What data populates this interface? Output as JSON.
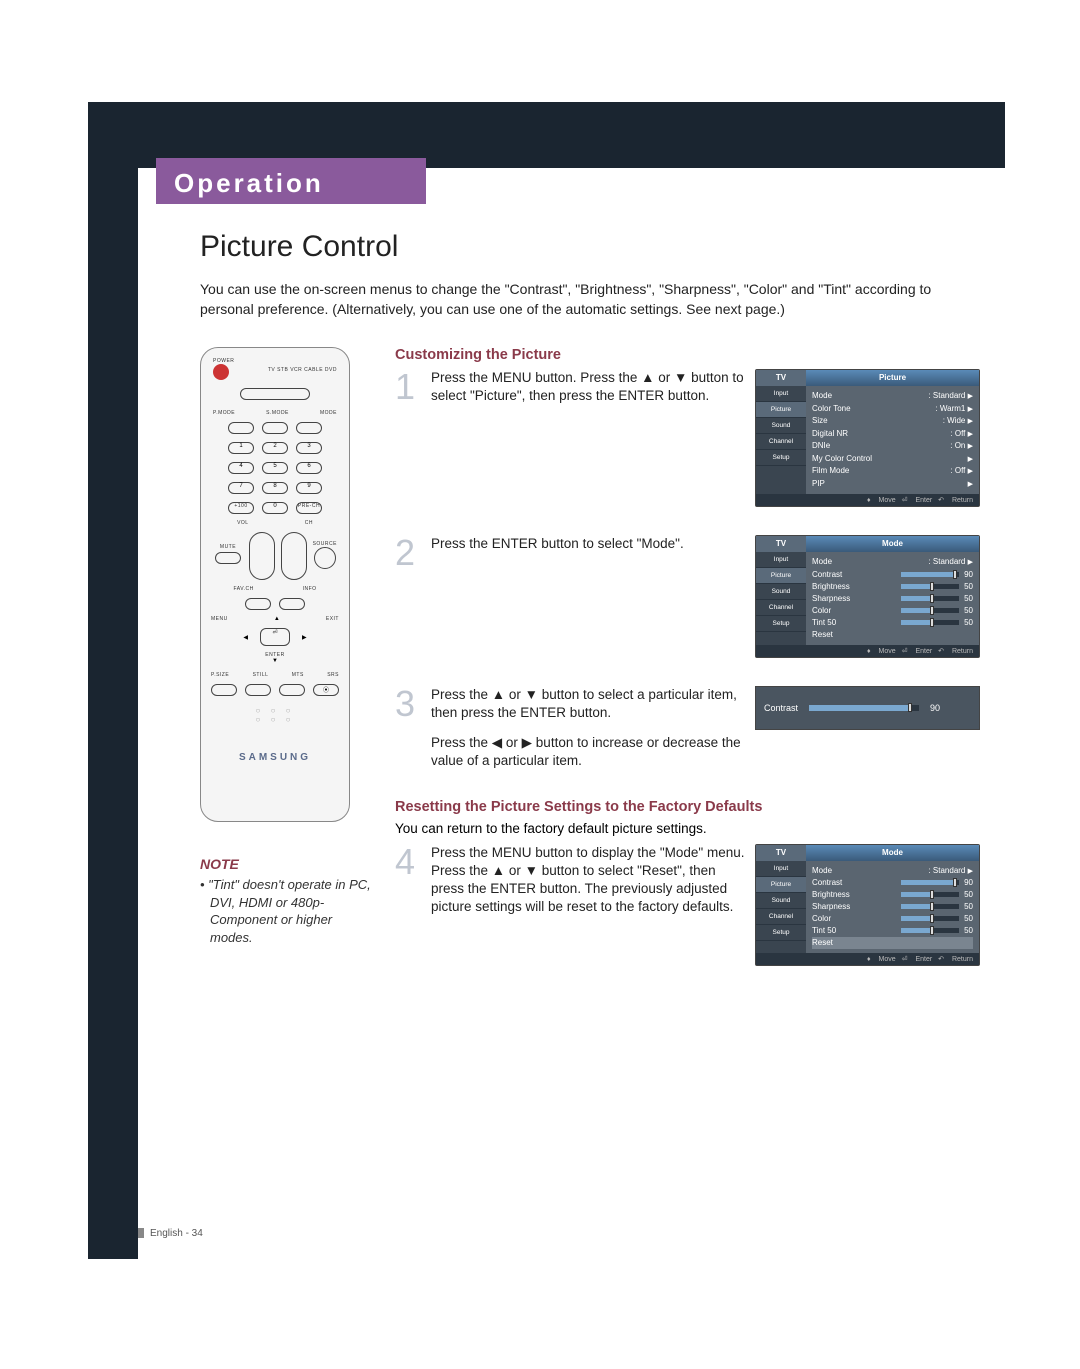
{
  "chapter": {
    "title": "Operation"
  },
  "page": {
    "title": "Picture Control",
    "intro": "You can use the on-screen menus to change the \"Contrast\", \"Brightness\", \"Sharpness\", \"Color\" and \"Tint\" according to personal preference. (Alternatively, you can use one of the automatic settings. See next page.)",
    "footer": "English - 34"
  },
  "note": {
    "label": "NOTE",
    "text": "• \"Tint\" doesn't operate in PC, DVI, HDMI or 480p-Component or higher modes."
  },
  "section1": {
    "heading": "Customizing the Picture",
    "step1": "Press the MENU button. Press the ▲ or ▼ button to select \"Picture\", then press the ENTER button.",
    "step2": "Press the ENTER button to select \"Mode\".",
    "step3a": "Press the ▲ or ▼ button to select a particular item, then press the ENTER button.",
    "step3b": "Press the ◀ or ▶ button to increase or decrease the value of a particular item."
  },
  "section2": {
    "heading": "Resetting the Picture Settings to the Factory Defaults",
    "intro": "You can return to the factory default picture settings.",
    "step4": "Press the MENU button to display the \"Mode\" menu. Press the ▲ or ▼ button to select \"Reset\", then press the ENTER button. The previously adjusted picture settings will be reset to the factory defaults."
  },
  "osd": {
    "tv": "TV",
    "sidebar": [
      "Input",
      "Picture",
      "Sound",
      "Channel",
      "Setup"
    ],
    "footer": {
      "move": "Move",
      "enter": "Enter",
      "return": "Return"
    },
    "menu1": {
      "title": "Picture",
      "rows": [
        {
          "label": "Mode",
          "value": ": Standard"
        },
        {
          "label": "Color Tone",
          "value": ": Warm1"
        },
        {
          "label": "Size",
          "value": ": Wide"
        },
        {
          "label": "Digital NR",
          "value": ": Off"
        },
        {
          "label": "DNIe",
          "value": ": On"
        },
        {
          "label": "My Color Control",
          "value": ""
        },
        {
          "label": "Film Mode",
          "value": ": Off"
        },
        {
          "label": "PIP",
          "value": ""
        }
      ]
    },
    "menu2": {
      "title": "Mode",
      "mode_row": {
        "label": "Mode",
        "value": ": Standard"
      },
      "sliders": [
        {
          "label": "Contrast",
          "value": 90,
          "pct": 90
        },
        {
          "label": "Brightness",
          "value": 50,
          "pct": 50
        },
        {
          "label": "Sharpness",
          "value": 50,
          "pct": 50
        },
        {
          "label": "Color",
          "value": 50,
          "pct": 50
        },
        {
          "label": "Tint     50",
          "value": 50,
          "pct": 50
        }
      ],
      "reset": "Reset"
    },
    "single": {
      "label": "Contrast",
      "value": 90,
      "pct": 90
    },
    "menu4": {
      "title": "Mode",
      "mode_row": {
        "label": "Mode",
        "value": ": Standard"
      },
      "sliders": [
        {
          "label": "Contrast",
          "value": 90,
          "pct": 90
        },
        {
          "label": "Brightness",
          "value": 50,
          "pct": 50
        },
        {
          "label": "Sharpness",
          "value": 50,
          "pct": 50
        },
        {
          "label": "Color",
          "value": 50,
          "pct": 50
        },
        {
          "label": "Tint     50",
          "value": 50,
          "pct": 50
        }
      ],
      "reset": "Reset"
    }
  },
  "remote": {
    "labels": {
      "power": "POWER",
      "top_row": "TV  STB  VCR  CABLE  DVD",
      "pmode": "P.MODE",
      "smode": "S.MODE",
      "mode": "MODE",
      "plus100": "+100",
      "prech": "PRE-CH",
      "vol": "VOL",
      "ch": "CH",
      "mute": "MUTE",
      "source": "SOURCE",
      "favch": "FAV.CH",
      "info": "INFO",
      "menu": "MENU",
      "exit": "EXIT",
      "enter": "ENTER",
      "psize": "P.SIZE",
      "still": "STILL",
      "mts": "MTS",
      "srs": "SRS",
      "brand": "SAMSUNG"
    }
  },
  "colors": {
    "chapter_bg": "#8a5a9c",
    "frame": "#1a2530",
    "accent": "#8a3a4a",
    "step_num": "#c0c6d0"
  }
}
